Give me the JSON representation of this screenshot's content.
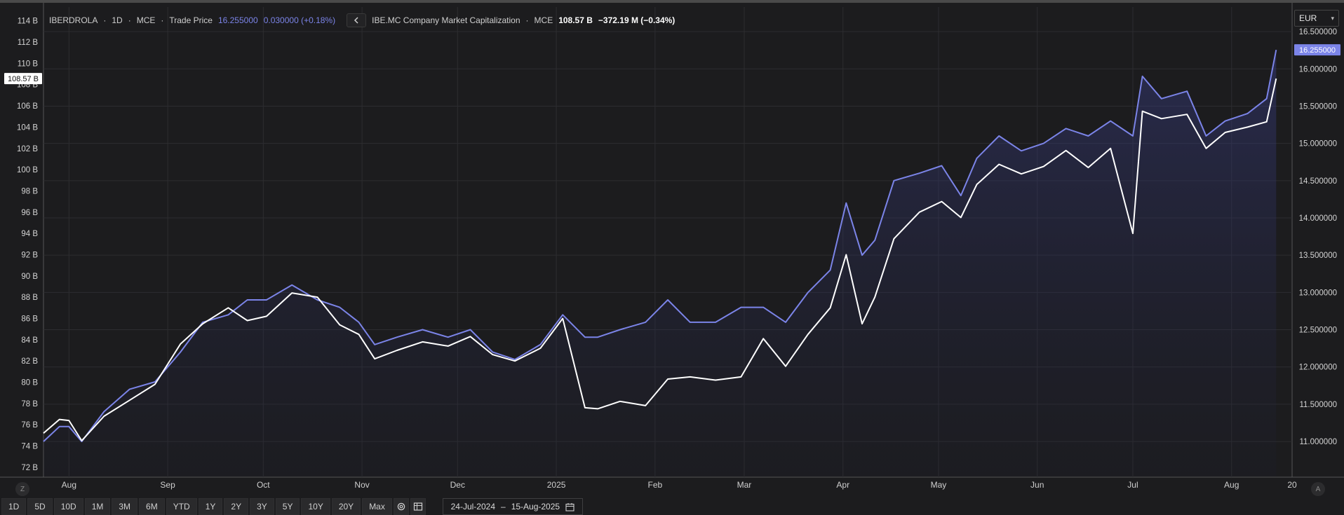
{
  "legend": {
    "symbol": "IBERDROLA",
    "interval": "1D",
    "exchange": "MCE",
    "study": "Trade Price",
    "price": "16.255000",
    "change": "0.030000 (+0.18%)",
    "collapse_icon": "chevron-left-icon",
    "compare_name": "IBE.MC Company Market Capitalization",
    "compare_exchange": "MCE",
    "compare_value": "108.57 B",
    "compare_change": "−372.19 M (−0.34%)"
  },
  "currency": {
    "value": "EUR",
    "icon": "chevron-down-icon"
  },
  "left_axis": {
    "ticks": [
      "72 B",
      "74 B",
      "76 B",
      "78 B",
      "80 B",
      "82 B",
      "84 B",
      "86 B",
      "88 B",
      "90 B",
      "92 B",
      "94 B",
      "96 B",
      "98 B",
      "100 B",
      "102 B",
      "104 B",
      "106 B",
      "108 B",
      "110 B",
      "112 B",
      "114 B"
    ],
    "current_label": "108.57 B"
  },
  "right_axis": {
    "ticks": [
      "11.000000",
      "11.500000",
      "12.000000",
      "12.500000",
      "13.000000",
      "13.500000",
      "14.000000",
      "14.500000",
      "15.000000",
      "15.500000",
      "16.000000",
      "16.500000"
    ],
    "current_label": "16.255000"
  },
  "x_axis": {
    "ticks": [
      "Aug",
      "Sep",
      "Oct",
      "Nov",
      "Dec",
      "2025",
      "Feb",
      "Mar",
      "Apr",
      "May",
      "Jun",
      "Jul",
      "Aug",
      "20"
    ]
  },
  "colors": {
    "price_line": "#7b84e8",
    "mcap_line": "#ffffff",
    "background": "#1c1c1e",
    "grid": "#2c2c2e"
  },
  "chart_data": {
    "type": "line",
    "x": [
      "2024-07-24",
      "2024-07-29",
      "2024-08-01",
      "2024-08-05",
      "2024-08-12",
      "2024-08-20",
      "2024-08-28",
      "2024-09-05",
      "2024-09-12",
      "2024-09-20",
      "2024-09-26",
      "2024-10-02",
      "2024-10-10",
      "2024-10-18",
      "2024-10-25",
      "2024-10-31",
      "2024-11-05",
      "2024-11-12",
      "2024-11-20",
      "2024-11-28",
      "2024-12-05",
      "2024-12-12",
      "2024-12-19",
      "2024-12-27",
      "2025-01-03",
      "2025-01-10",
      "2025-01-14",
      "2025-01-21",
      "2025-01-29",
      "2025-02-05",
      "2025-02-12",
      "2025-02-20",
      "2025-02-28",
      "2025-03-07",
      "2025-03-14",
      "2025-03-21",
      "2025-03-28",
      "2025-04-02",
      "2025-04-07",
      "2025-04-11",
      "2025-04-17",
      "2025-04-25",
      "2025-05-02",
      "2025-05-08",
      "2025-05-13",
      "2025-05-20",
      "2025-05-27",
      "2025-06-03",
      "2025-06-10",
      "2025-06-17",
      "2025-06-24",
      "2025-07-01",
      "2025-07-04",
      "2025-07-10",
      "2025-07-18",
      "2025-07-24",
      "2025-07-30",
      "2025-08-06",
      "2025-08-12",
      "2025-08-15"
    ],
    "series": [
      {
        "name": "IBERDROLA Trade Price",
        "axis": "right",
        "values": [
          11.0,
          11.2,
          11.2,
          11.0,
          11.4,
          11.7,
          11.8,
          12.2,
          12.6,
          12.7,
          12.9,
          12.9,
          13.1,
          12.9,
          12.8,
          12.6,
          12.3,
          12.4,
          12.5,
          12.4,
          12.5,
          12.2,
          12.1,
          12.3,
          12.7,
          12.4,
          12.4,
          12.5,
          12.6,
          12.9,
          12.6,
          12.6,
          12.8,
          12.8,
          12.6,
          13.0,
          13.3,
          14.2,
          13.5,
          13.7,
          14.5,
          14.6,
          14.7,
          14.3,
          14.8,
          15.1,
          14.9,
          15.0,
          15.2,
          15.1,
          15.3,
          15.1,
          15.9,
          15.6,
          15.7,
          15.1,
          15.3,
          15.4,
          15.6,
          16.255
        ]
      },
      {
        "name": "IBE.MC Company Market Capitalization",
        "axis": "left",
        "values": [
          75.2,
          76.5,
          76.4,
          74.5,
          76.8,
          78.3,
          79.8,
          83.6,
          85.5,
          87.0,
          85.8,
          86.2,
          88.4,
          88.0,
          85.4,
          84.5,
          82.2,
          83.0,
          83.8,
          83.4,
          84.3,
          82.6,
          82.0,
          83.2,
          86.0,
          77.6,
          77.5,
          78.2,
          77.8,
          80.3,
          80.5,
          80.2,
          80.5,
          84.1,
          81.5,
          84.5,
          87.0,
          92.0,
          85.5,
          88.0,
          93.5,
          96.0,
          97.0,
          95.5,
          98.6,
          100.5,
          99.6,
          100.3,
          101.8,
          100.2,
          102.0,
          94.0,
          105.5,
          104.8,
          105.2,
          102.0,
          103.5,
          104.0,
          104.5,
          108.57
        ]
      }
    ],
    "xlim": [
      "2024-07-24",
      "2025-08-20"
    ],
    "ylim_left": [
      71.2,
      115.3
    ],
    "ylim_right": [
      10.54,
      16.83
    ],
    "grid": true,
    "range_start": "24-Jul-2024",
    "range_end": "15-Aug-2025"
  },
  "toolbar": {
    "ranges": [
      "1D",
      "5D",
      "10D",
      "1M",
      "3M",
      "6M",
      "YTD",
      "1Y",
      "2Y",
      "3Y",
      "5Y",
      "10Y",
      "20Y",
      "Max"
    ],
    "settings_icon": "gear-icon",
    "table_icon": "table-icon",
    "date_from": "24-Jul-2024",
    "date_sep": "–",
    "date_to": "15-Aug-2025",
    "calendar_icon": "calendar-icon",
    "left_corner": "Z",
    "right_corner": "A"
  }
}
